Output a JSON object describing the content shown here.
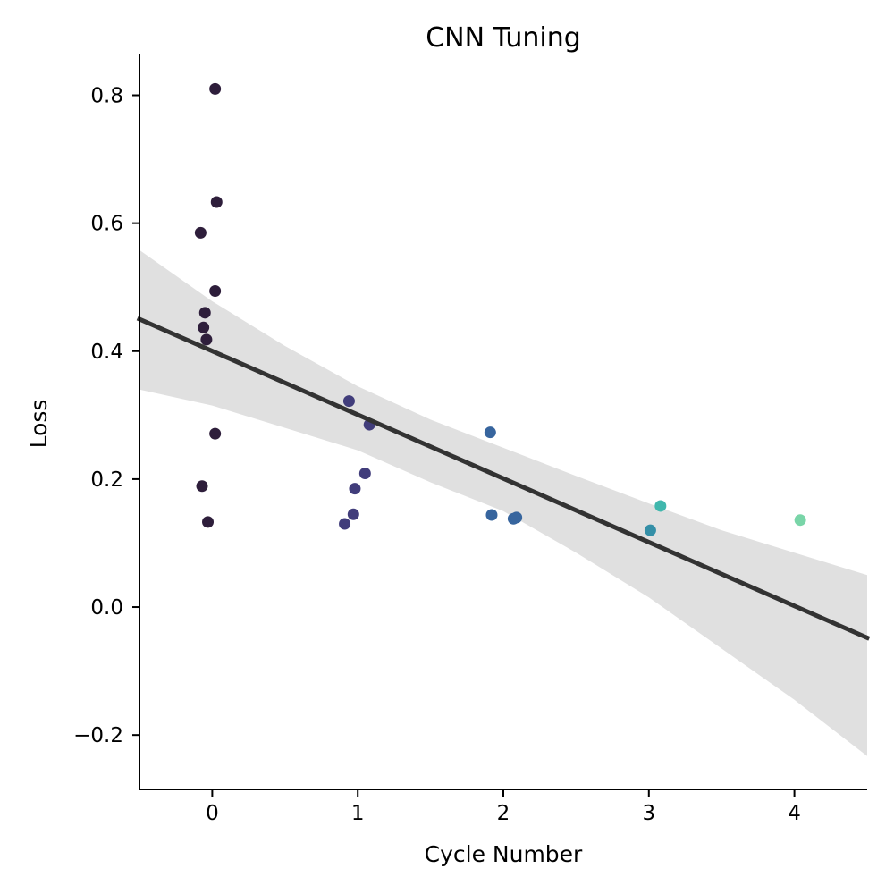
{
  "chart_data": {
    "type": "scatter",
    "title": "CNN Tuning",
    "xlabel": "Cycle Number",
    "ylabel": "Loss",
    "xlim": [
      -0.5,
      4.5
    ],
    "ylim": [
      -0.285,
      0.865
    ],
    "xticks": [
      0,
      1,
      2,
      3,
      4
    ],
    "xtick_labels": [
      "0",
      "1",
      "2",
      "3",
      "4"
    ],
    "yticks": [
      -0.2,
      0.0,
      0.2,
      0.4,
      0.6,
      0.8
    ],
    "ytick_labels": [
      "−0.2",
      "0.0",
      "0.2",
      "0.4",
      "0.6",
      "0.8"
    ],
    "grid": false,
    "legend": "none",
    "points": [
      {
        "x": 0.02,
        "y": 0.81,
        "color": "#2e1e3b"
      },
      {
        "x": 0.03,
        "y": 0.633,
        "color": "#2e1e3b"
      },
      {
        "x": -0.08,
        "y": 0.585,
        "color": "#2e1e3b"
      },
      {
        "x": 0.02,
        "y": 0.494,
        "color": "#2e1e3b"
      },
      {
        "x": -0.05,
        "y": 0.46,
        "color": "#2e1e3b"
      },
      {
        "x": -0.06,
        "y": 0.437,
        "color": "#2e1e3b"
      },
      {
        "x": -0.04,
        "y": 0.418,
        "color": "#2e1e3b"
      },
      {
        "x": 0.02,
        "y": 0.271,
        "color": "#2e1e3b"
      },
      {
        "x": -0.07,
        "y": 0.189,
        "color": "#2e1e3b"
      },
      {
        "x": -0.03,
        "y": 0.133,
        "color": "#2e1e3b"
      },
      {
        "x": 0.94,
        "y": 0.322,
        "color": "#413d7b"
      },
      {
        "x": 1.08,
        "y": 0.285,
        "color": "#413d7b"
      },
      {
        "x": 1.05,
        "y": 0.209,
        "color": "#413d7b"
      },
      {
        "x": 0.98,
        "y": 0.185,
        "color": "#413d7b"
      },
      {
        "x": 0.97,
        "y": 0.145,
        "color": "#413d7b"
      },
      {
        "x": 0.91,
        "y": 0.13,
        "color": "#413d7b"
      },
      {
        "x": 1.91,
        "y": 0.273,
        "color": "#37659e"
      },
      {
        "x": 1.92,
        "y": 0.144,
        "color": "#37659e"
      },
      {
        "x": 2.07,
        "y": 0.138,
        "color": "#37659e"
      },
      {
        "x": 2.09,
        "y": 0.14,
        "color": "#37659e"
      },
      {
        "x": 3.01,
        "y": 0.12,
        "color": "#348fa7"
      },
      {
        "x": 3.08,
        "y": 0.158,
        "color": "#40b7ad"
      },
      {
        "x": 4.04,
        "y": 0.136,
        "color": "#79d5a8"
      }
    ],
    "regression": {
      "x": [
        -0.5,
        4.5
      ],
      "y": [
        0.45,
        -0.048
      ],
      "color": "#333333"
    },
    "confidence_band": {
      "x": [
        -0.5,
        0.0,
        0.5,
        1.0,
        1.5,
        2.0,
        2.5,
        3.0,
        3.5,
        4.0,
        4.5
      ],
      "upper": [
        0.558,
        0.478,
        0.408,
        0.345,
        0.293,
        0.249,
        0.205,
        0.162,
        0.12,
        0.085,
        0.05
      ],
      "lower": [
        0.34,
        0.315,
        0.28,
        0.245,
        0.195,
        0.15,
        0.085,
        0.015,
        -0.065,
        -0.145,
        -0.233
      ],
      "color": "#e0e0e0"
    }
  }
}
